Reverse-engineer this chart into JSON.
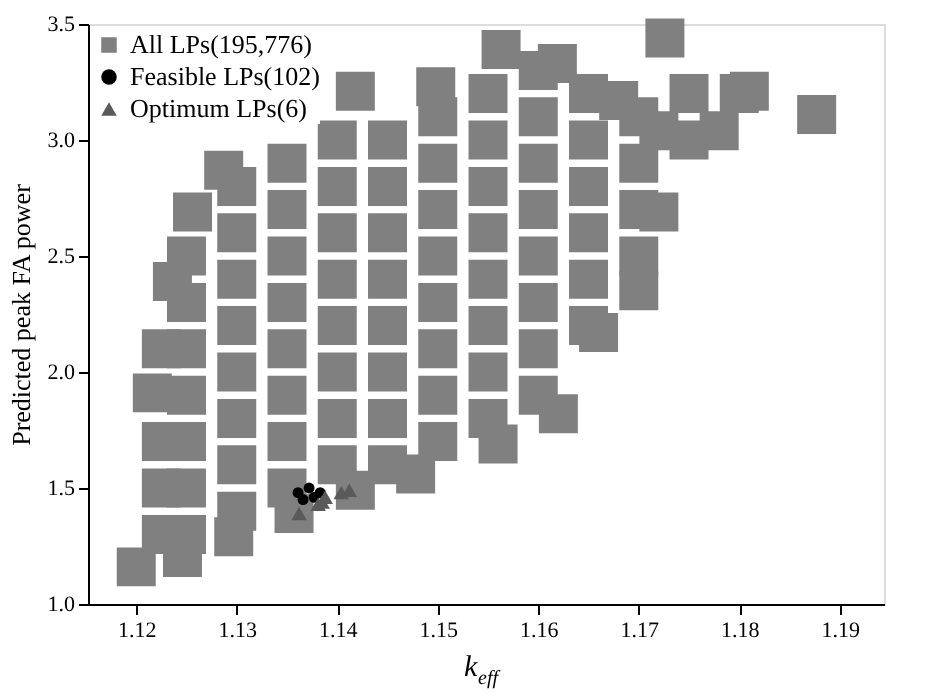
{
  "chart_data": {
    "type": "scatter",
    "xlabel": "k$_{eff}$",
    "ylabel": "Predicted peak FA power",
    "xlim": [
      1.1152,
      1.1944
    ],
    "xticks": [
      1.12,
      1.13,
      1.14,
      1.15,
      1.16,
      1.17,
      1.18,
      1.19
    ],
    "ylim": [
      1.0,
      3.5
    ],
    "yticks": [
      {
        "value": 1,
        "label": "1.0"
      },
      1.5,
      {
        "value": 2,
        "label": "2.0"
      },
      2.5,
      {
        "value": 3,
        "label": "3.0"
      },
      3.5
    ],
    "grid": false,
    "legend": "top left",
    "series": [
      {
        "name": "All LPs(195,776)",
        "color": "#808080",
        "marker": "square",
        "x": [
          1.12,
          1.1216,
          1.1236,
          1.1256,
          1.1287,
          1.1418,
          1.1498,
          1.1563,
          1.1619,
          1.168,
          1.172,
          1.1726,
          1.181,
          1.1877,
          1.178,
          1.172,
          1.17,
          1.166,
          1.162,
          1.156,
          1.1478,
          1.1418,
          1.1357,
          1.1297,
          1.1246,
          1.1225,
          1.1225,
          1.1225,
          1.1225,
          1.125,
          1.125,
          1.125,
          1.125,
          1.125,
          1.125,
          1.125,
          1.13,
          1.13,
          1.13,
          1.13,
          1.13,
          1.13,
          1.13,
          1.13,
          1.135,
          1.135,
          1.135,
          1.135,
          1.135,
          1.135,
          1.135,
          1.135,
          1.14,
          1.14,
          1.14,
          1.14,
          1.14,
          1.14,
          1.14,
          1.14,
          1.145,
          1.145,
          1.145,
          1.145,
          1.145,
          1.145,
          1.145,
          1.145,
          1.15,
          1.15,
          1.15,
          1.15,
          1.15,
          1.15,
          1.15,
          1.15,
          1.155,
          1.155,
          1.155,
          1.155,
          1.155,
          1.155,
          1.155,
          1.155,
          1.16,
          1.16,
          1.16,
          1.16,
          1.16,
          1.16,
          1.16,
          1.16,
          1.165,
          1.165,
          1.165,
          1.165,
          1.165,
          1.165,
          1.17,
          1.17,
          1.17,
          1.17,
          1.175,
          1.175,
          1.18
        ],
        "values": [
          1.16,
          1.91,
          2.39,
          2.69,
          2.87,
          3.21,
          3.23,
          3.39,
          3.33,
          3.17,
          3.04,
          3.44,
          3.21,
          3.11,
          3.04,
          2.69,
          2.35,
          2.17,
          1.82,
          1.69,
          1.56,
          1.49,
          1.39,
          1.29,
          1.2,
          1.3,
          1.5,
          1.7,
          2.1,
          1.3,
          1.5,
          1.7,
          1.9,
          2.1,
          2.3,
          2.5,
          1.4,
          1.6,
          1.8,
          2.0,
          2.2,
          2.4,
          2.6,
          2.8,
          1.5,
          1.7,
          1.9,
          2.1,
          2.3,
          2.5,
          2.7,
          2.9,
          1.6,
          1.8,
          2.0,
          2.2,
          2.4,
          2.6,
          2.8,
          3.0,
          1.6,
          1.8,
          2.0,
          2.2,
          2.4,
          2.6,
          2.8,
          3.0,
          1.7,
          1.9,
          2.1,
          2.3,
          2.5,
          2.7,
          2.9,
          3.1,
          1.8,
          2.0,
          2.2,
          2.4,
          2.6,
          2.8,
          3.0,
          3.2,
          1.9,
          2.1,
          2.3,
          2.5,
          2.7,
          2.9,
          3.1,
          3.3,
          2.2,
          2.4,
          2.6,
          2.8,
          3.0,
          3.2,
          2.5,
          2.7,
          2.9,
          3.1,
          3.0,
          3.2,
          3.2
        ]
      },
      {
        "name": "Feasible LPs(102)",
        "color": "#000000",
        "marker": "circle",
        "x": [
          1.1361,
          1.1372,
          1.1383,
          1.1366,
          1.1377
        ],
        "values": [
          1.48,
          1.5,
          1.48,
          1.45,
          1.46
        ]
      },
      {
        "name": "Optimum LPs(6)",
        "color": "#5a5a5a",
        "marker": "triangle",
        "x": [
          1.1362,
          1.1381,
          1.1385,
          1.1388,
          1.1404,
          1.1412
        ],
        "values": [
          1.39,
          1.43,
          1.44,
          1.46,
          1.48,
          1.49
        ]
      }
    ]
  }
}
